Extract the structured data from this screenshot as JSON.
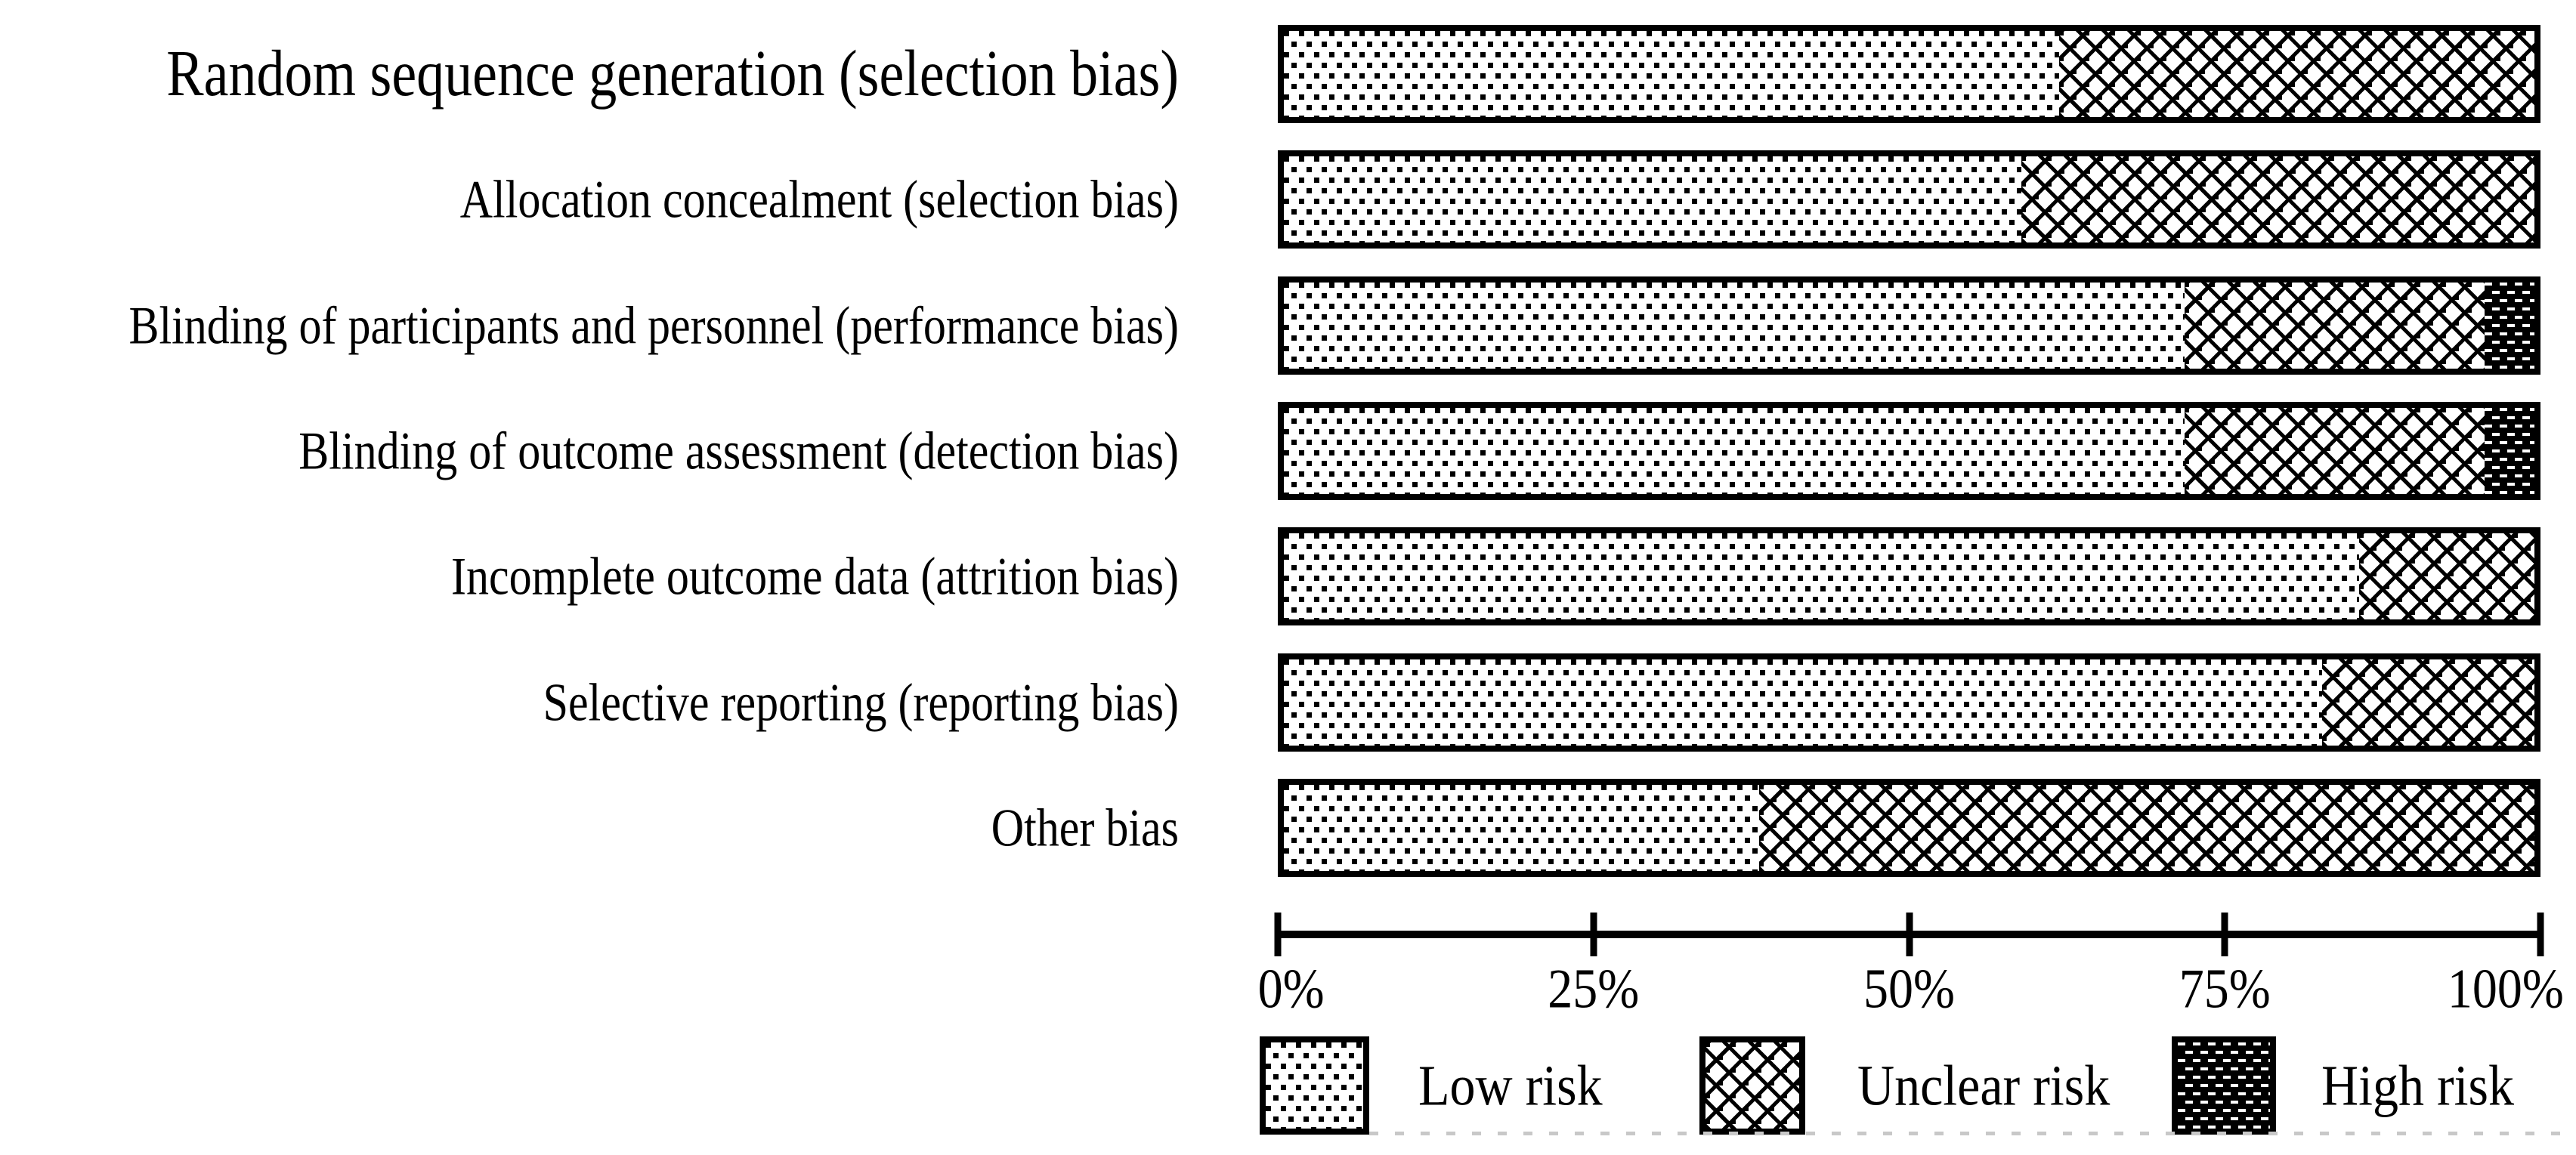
{
  "chart_data": {
    "type": "bar",
    "orientation": "horizontal-stacked",
    "title": "",
    "xlabel": "",
    "ylabel": "",
    "xlim": [
      0,
      100
    ],
    "x_ticks": [
      "0%",
      "25%",
      "50%",
      "75%",
      "100%"
    ],
    "grid": false,
    "legend_position": "bottom",
    "categories": [
      "Random sequence generation (selection bias)",
      "Allocation concealment (selection bias)",
      "Blinding of participants and personnel (performance bias)",
      "Blinding of outcome assessment (detection bias)",
      "Incomplete outcome data (attrition bias)",
      "Selective reporting (reporting bias)",
      "Other bias"
    ],
    "series": [
      {
        "name": "Low risk",
        "pattern": "dotted",
        "values": [
          62,
          59,
          72,
          72,
          86,
          83,
          38
        ]
      },
      {
        "name": "Unclear risk",
        "pattern": "crosshatch",
        "values": [
          38,
          41,
          24,
          24,
          14,
          17,
          62
        ]
      },
      {
        "name": "High risk",
        "pattern": "dark-white-dashes",
        "values": [
          0,
          0,
          4,
          4,
          0,
          0,
          0
        ]
      }
    ]
  },
  "axis": {
    "ticks": [
      "0%",
      "25%",
      "50%",
      "75%",
      "100%"
    ]
  },
  "legend": {
    "items": [
      {
        "label": "Low risk",
        "pattern": "dotted"
      },
      {
        "label": "Unclear risk",
        "pattern": "crosshatch"
      },
      {
        "label": "High risk",
        "pattern": "dark-white-dashes"
      }
    ]
  },
  "colors": {
    "ink": "#000000",
    "background": "#ffffff",
    "rule": "#c8c8c8"
  }
}
